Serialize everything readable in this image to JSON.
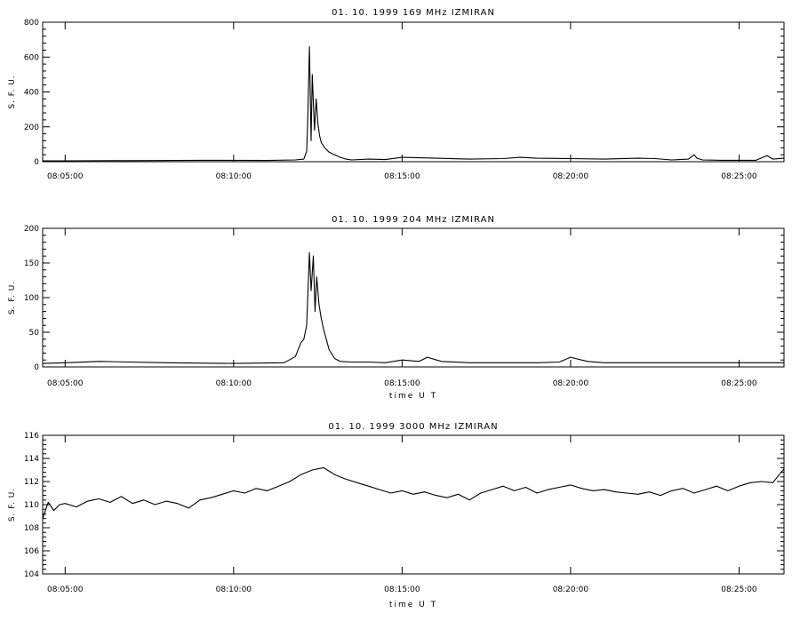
{
  "chart_data": [
    {
      "type": "line",
      "title": "01.  10.  1999    169  MHz    IZMIRAN",
      "ylabel": "S.  F.  U.",
      "xlabel": "",
      "xlim": [
        "08:04:20",
        "08:26:20"
      ],
      "ylim": [
        0,
        800
      ],
      "yticks": [
        0,
        200,
        400,
        600,
        800
      ],
      "xticks": [
        "08:05:00",
        "08:10:00",
        "08:15:00",
        "08:20:00",
        "08:25:00"
      ],
      "x": [
        "08:04:20",
        "08:05:00",
        "08:07:00",
        "08:09:00",
        "08:11:00",
        "08:11:50",
        "08:12:05",
        "08:12:10",
        "08:12:12",
        "08:12:15",
        "08:12:18",
        "08:12:20",
        "08:12:24",
        "08:12:27",
        "08:12:30",
        "08:12:33",
        "08:12:36",
        "08:12:40",
        "08:12:45",
        "08:12:50",
        "08:13:00",
        "08:13:10",
        "08:13:20",
        "08:13:30",
        "08:14:00",
        "08:14:30",
        "08:15:00",
        "08:16:00",
        "08:17:00",
        "08:18:00",
        "08:18:30",
        "08:19:00",
        "08:20:00",
        "08:21:00",
        "08:22:00",
        "08:22:30",
        "08:23:00",
        "08:23:30",
        "08:23:40",
        "08:23:45",
        "08:23:55",
        "08:24:30",
        "08:25:30",
        "08:25:50",
        "08:26:00",
        "08:26:20"
      ],
      "values": [
        5,
        5,
        6,
        8,
        7,
        10,
        15,
        60,
        240,
        660,
        120,
        500,
        180,
        360,
        220,
        150,
        110,
        90,
        70,
        55,
        40,
        25,
        15,
        10,
        15,
        12,
        25,
        20,
        15,
        18,
        25,
        20,
        18,
        15,
        20,
        18,
        10,
        15,
        40,
        20,
        10,
        8,
        8,
        35,
        15,
        20
      ]
    },
    {
      "type": "line",
      "title": "01.  10.  1999    204  MHz    IZMIRAN",
      "ylabel": "S.  F.  U.",
      "xlabel": "time  U T",
      "xlim": [
        "08:04:20",
        "08:26:20"
      ],
      "ylim": [
        0,
        200
      ],
      "yticks": [
        0,
        50,
        100,
        150,
        200
      ],
      "xticks": [
        "08:05:00",
        "08:10:00",
        "08:15:00",
        "08:20:00",
        "08:25:00"
      ],
      "x": [
        "08:04:20",
        "08:05:00",
        "08:06:00",
        "08:08:00",
        "08:10:00",
        "08:11:30",
        "08:11:50",
        "08:12:00",
        "08:12:05",
        "08:12:10",
        "08:12:15",
        "08:12:18",
        "08:12:22",
        "08:12:25",
        "08:12:28",
        "08:12:32",
        "08:12:36",
        "08:12:40",
        "08:12:45",
        "08:12:50",
        "08:13:00",
        "08:13:10",
        "08:13:30",
        "08:14:00",
        "08:14:30",
        "08:15:00",
        "08:15:30",
        "08:15:45",
        "08:16:10",
        "08:17:00",
        "08:18:00",
        "08:19:00",
        "08:19:40",
        "08:20:00",
        "08:20:30",
        "08:21:00",
        "08:23:00",
        "08:25:00",
        "08:26:20"
      ],
      "values": [
        5,
        6,
        8,
        6,
        5,
        6,
        15,
        35,
        40,
        60,
        165,
        110,
        160,
        80,
        130,
        90,
        70,
        55,
        40,
        25,
        12,
        8,
        7,
        7,
        6,
        10,
        8,
        14,
        8,
        6,
        6,
        6,
        7,
        14,
        8,
        6,
        6,
        6,
        6
      ]
    },
    {
      "type": "line",
      "title": "01.  10.  1999    3000  MHz    IZMIRAN",
      "ylabel": "S.  F.  U.",
      "xlabel": "time  U T",
      "xlim": [
        "08:04:20",
        "08:26:20"
      ],
      "ylim": [
        104,
        116
      ],
      "yticks": [
        104,
        106,
        108,
        110,
        112,
        114,
        116
      ],
      "xticks": [
        "08:05:00",
        "08:10:00",
        "08:15:00",
        "08:20:00",
        "08:25:00"
      ],
      "x": [
        "08:04:20",
        "08:04:30",
        "08:04:40",
        "08:04:50",
        "08:05:00",
        "08:05:20",
        "08:05:40",
        "08:06:00",
        "08:06:20",
        "08:06:40",
        "08:07:00",
        "08:07:20",
        "08:07:40",
        "08:08:00",
        "08:08:20",
        "08:08:40",
        "08:09:00",
        "08:09:20",
        "08:09:40",
        "08:10:00",
        "08:10:20",
        "08:10:40",
        "08:11:00",
        "08:11:20",
        "08:11:40",
        "08:12:00",
        "08:12:20",
        "08:12:40",
        "08:13:00",
        "08:13:20",
        "08:13:40",
        "08:14:00",
        "08:14:20",
        "08:14:40",
        "08:15:00",
        "08:15:20",
        "08:15:40",
        "08:16:00",
        "08:16:20",
        "08:16:40",
        "08:17:00",
        "08:17:20",
        "08:17:40",
        "08:18:00",
        "08:18:20",
        "08:18:40",
        "08:19:00",
        "08:19:20",
        "08:19:40",
        "08:20:00",
        "08:20:20",
        "08:20:40",
        "08:21:00",
        "08:21:20",
        "08:21:40",
        "08:22:00",
        "08:22:20",
        "08:22:40",
        "08:23:00",
        "08:23:20",
        "08:23:40",
        "08:24:00",
        "08:24:20",
        "08:24:40",
        "08:25:00",
        "08:25:20",
        "08:25:40",
        "08:26:00",
        "08:26:20"
      ],
      "values": [
        108.8,
        110.2,
        109.5,
        110.0,
        110.1,
        109.8,
        110.3,
        110.5,
        110.2,
        110.7,
        110.1,
        110.4,
        110.0,
        110.3,
        110.1,
        109.7,
        110.4,
        110.6,
        110.9,
        111.2,
        111.0,
        111.4,
        111.2,
        111.6,
        112.0,
        112.6,
        113.0,
        113.2,
        112.6,
        112.2,
        111.9,
        111.6,
        111.3,
        111.0,
        111.2,
        110.9,
        111.1,
        110.8,
        110.6,
        110.9,
        110.4,
        111.0,
        111.3,
        111.6,
        111.2,
        111.5,
        111.0,
        111.3,
        111.5,
        111.7,
        111.4,
        111.2,
        111.3,
        111.1,
        111.0,
        110.9,
        111.1,
        110.8,
        111.2,
        111.4,
        111.0,
        111.3,
        111.6,
        111.2,
        111.6,
        111.9,
        112.0,
        111.9,
        113.1
      ]
    }
  ]
}
